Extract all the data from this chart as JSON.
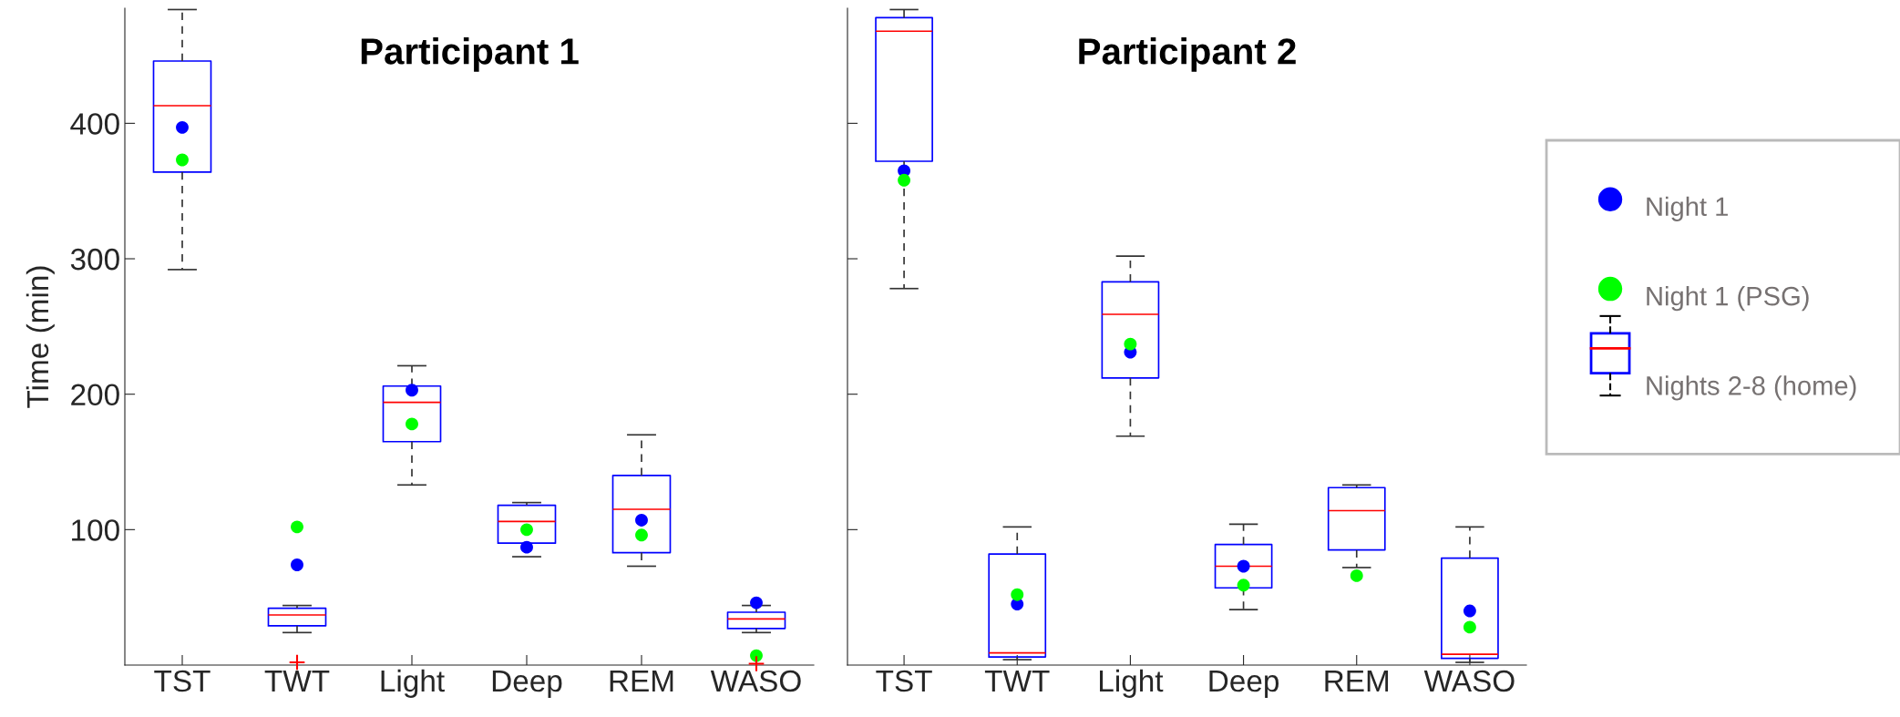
{
  "chart_data": [
    {
      "type": "box",
      "title": "Participant 1",
      "ylabel": "Time (min)",
      "categories": [
        "TST",
        "TWT",
        "Light",
        "Deep",
        "REM",
        "WASO"
      ],
      "ylim": [
        0,
        485
      ],
      "yticks": [
        100,
        200,
        300,
        400
      ],
      "grid": false,
      "legend": false,
      "series": [
        {
          "type": "scatter",
          "color": "#0000ff",
          "marker": "circle",
          "x": [
            "TST",
            "TWT",
            "Light",
            "Deep",
            "REM",
            "WASO"
          ],
          "values": [
            397,
            74,
            203,
            87,
            107,
            46
          ]
        },
        {
          "type": "scatter",
          "color": "#00ff00",
          "marker": "circle",
          "x": [
            "TST",
            "TWT",
            "Light",
            "Deep",
            "REM",
            "WASO"
          ],
          "values": [
            373,
            102,
            178,
            100,
            96,
            7
          ]
        },
        {
          "type": "box",
          "color": "#0000ff",
          "boxes": [
            {
              "low": 292,
              "q1": 364,
              "median": 413,
              "q3": 446,
              "high": 484
            },
            {
              "low": 24,
              "q1": 29,
              "median": 37,
              "q3": 42,
              "high": 44,
              "outliers": [
                2
              ]
            },
            {
              "low": 133,
              "q1": 165,
              "median": 194,
              "q3": 206,
              "high": 221
            },
            {
              "low": 80,
              "q1": 90,
              "median": 106,
              "q3": 118,
              "high": 120
            },
            {
              "low": 73,
              "q1": 83,
              "median": 115,
              "q3": 140,
              "high": 170
            },
            {
              "low": 24,
              "q1": 27,
              "median": 34,
              "q3": 39,
              "high": 44,
              "outliers": [
                1
              ]
            }
          ]
        }
      ]
    },
    {
      "type": "box",
      "title": "Participant 2",
      "categories": [
        "TST",
        "TWT",
        "Light",
        "Deep",
        "REM",
        "WASO"
      ],
      "ylim": [
        0,
        485
      ],
      "yticks": [
        100,
        200,
        300,
        400
      ],
      "tick_labels": "x",
      "grid": false,
      "legend": "right",
      "series": [
        {
          "type": "scatter",
          "name": "Night 1",
          "color": "#0000ff",
          "marker": "circle",
          "x": [
            "TST",
            "TWT",
            "Light",
            "Deep",
            "REM",
            "WASO"
          ],
          "values": [
            365,
            45,
            231,
            73,
            null,
            40
          ]
        },
        {
          "type": "scatter",
          "name": "Night 1 (PSG)",
          "color": "#00ff00",
          "marker": "circle",
          "x": [
            "TST",
            "TWT",
            "Light",
            "Deep",
            "REM",
            "WASO"
          ],
          "values": [
            358,
            52,
            237,
            59,
            66,
            28
          ]
        },
        {
          "type": "box",
          "name": "Nights 2-8 (home)",
          "color": "#0000ff",
          "boxes": [
            {
              "low": 278,
              "q1": 372,
              "median": 468,
              "q3": 478,
              "high": 484
            },
            {
              "low": 4,
              "q1": 6,
              "median": 9,
              "q3": 82,
              "high": 102
            },
            {
              "low": 169,
              "q1": 212,
              "median": 259,
              "q3": 283,
              "high": 302
            },
            {
              "low": 41,
              "q1": 57,
              "median": 73,
              "q3": 89,
              "high": 104
            },
            {
              "low": 72,
              "q1": 85,
              "median": 114,
              "q3": 131,
              "high": 133
            },
            {
              "low": 2,
              "q1": 5,
              "median": 8,
              "q3": 79,
              "high": 102
            }
          ]
        }
      ]
    }
  ]
}
